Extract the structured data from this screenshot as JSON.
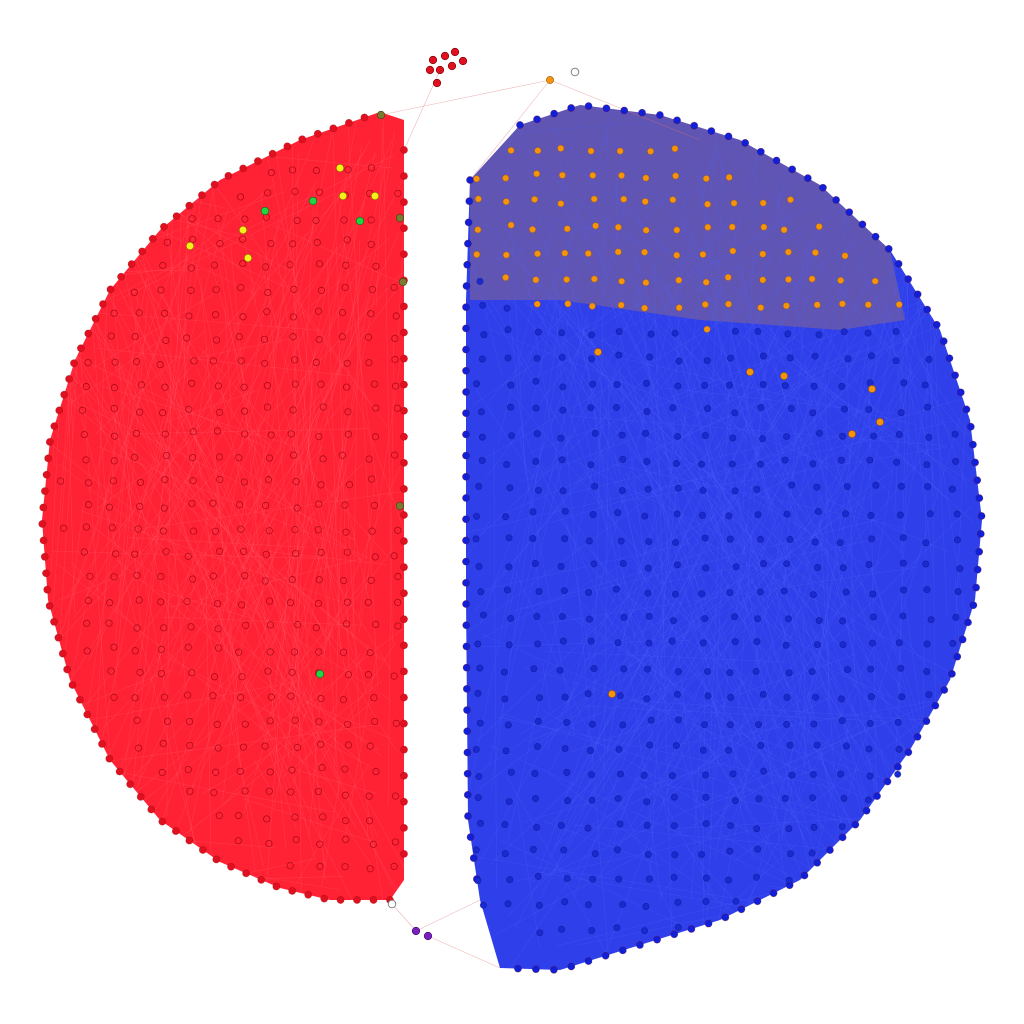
{
  "diagram": {
    "type": "network-graph",
    "background": "#ffffff",
    "layout": "split-disc",
    "clusters": [
      {
        "id": "red-community",
        "shape": "left-half-disc",
        "fill": "#ff0a1e",
        "node_color": "#e01020",
        "approx_nodes": 260
      },
      {
        "id": "blue-community",
        "shape": "right-disc",
        "fill": "#0a1fe6",
        "node_color": "#1020d8",
        "approx_nodes": 420
      },
      {
        "id": "orange-community",
        "shape": "region-in-blue",
        "node_color": "#f5940a",
        "approx_nodes": 80
      }
    ],
    "minor_nodes": [
      {
        "group": "yellow",
        "color": "#f6f01a"
      },
      {
        "group": "green",
        "color": "#22d640"
      },
      {
        "group": "olive",
        "color": "#7a7a30"
      },
      {
        "group": "purple",
        "color": "#7a1ec0"
      },
      {
        "group": "hollow",
        "color": "#ffffff"
      },
      {
        "group": "isolated-red",
        "color": "#e01020"
      }
    ]
  }
}
